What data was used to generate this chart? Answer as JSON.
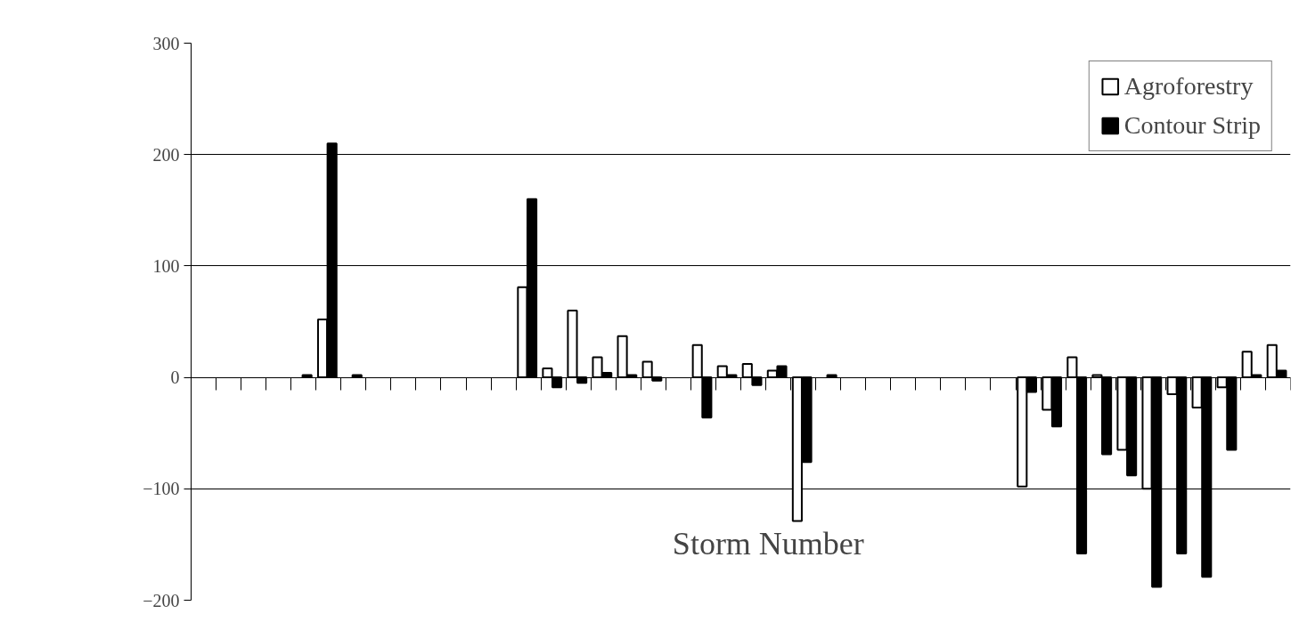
{
  "chart_data": {
    "type": "bar",
    "xlabel": "Storm Number",
    "categories": [
      null,
      null,
      null,
      null,
      null,
      null,
      null,
      null,
      null,
      null,
      null,
      null,
      null,
      null,
      null,
      null,
      null,
      null,
      null,
      null,
      null,
      null,
      null,
      null,
      null,
      null,
      null,
      null,
      null,
      null,
      null,
      null,
      null,
      null,
      null,
      null,
      null,
      null,
      null,
      null,
      null,
      null,
      null,
      null
    ],
    "series": [
      {
        "name": "Agroforestry",
        "color": "#ffffff",
        "values": [
          null,
          null,
          null,
          null,
          null,
          52,
          null,
          null,
          null,
          null,
          null,
          null,
          null,
          81,
          8,
          60,
          18,
          37,
          14,
          null,
          29,
          10,
          12,
          6,
          -129,
          null,
          null,
          null,
          null,
          null,
          null,
          null,
          null,
          -98,
          -29,
          18,
          2,
          -65,
          -100,
          -15,
          -27,
          -9,
          23,
          29
        ]
      },
      {
        "name": "Contour Strip",
        "color": "#000000",
        "values": [
          null,
          null,
          null,
          null,
          2,
          210,
          2,
          null,
          null,
          null,
          null,
          null,
          null,
          160,
          -9,
          -5,
          4,
          2,
          -3,
          null,
          -36,
          2,
          -7,
          10,
          -76,
          2,
          null,
          null,
          null,
          null,
          null,
          null,
          null,
          -13,
          -44,
          -158,
          -69,
          -88,
          -188,
          -158,
          -179,
          -65,
          2,
          6
        ]
      }
    ],
    "ylim": [
      -200,
      300
    ],
    "yticks": [
      -200,
      -100,
      0,
      100,
      200,
      300
    ],
    "grid": "y",
    "legend": "top right"
  }
}
